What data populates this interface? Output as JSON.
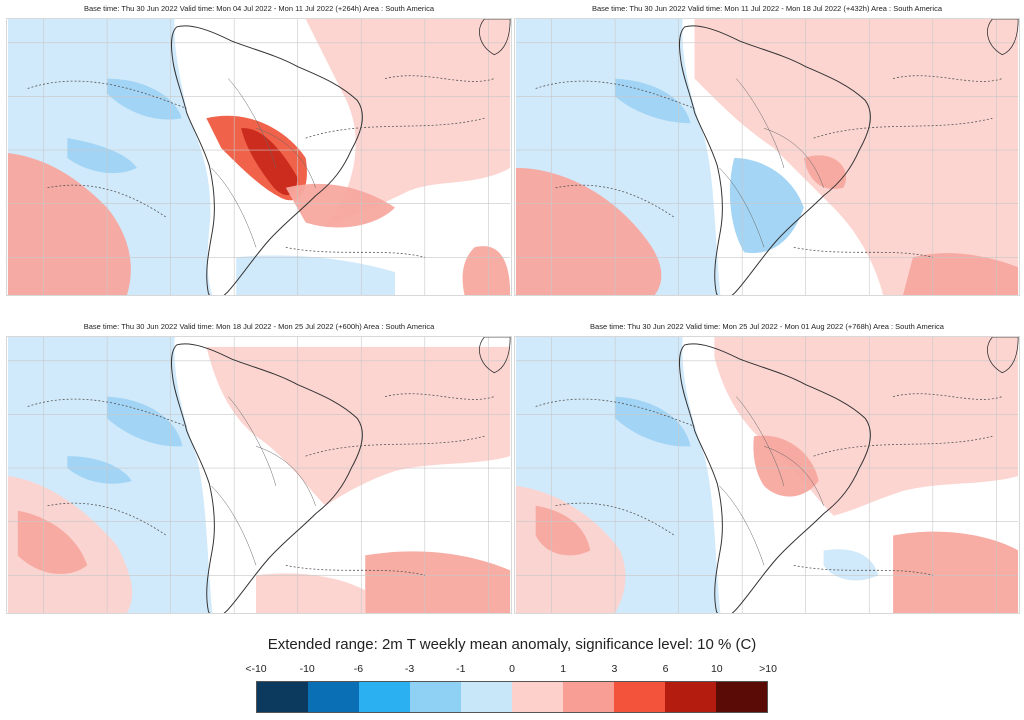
{
  "panels": [
    {
      "caption": "Base time: Thu 30 Jun 2022 Valid time: Mon 04 Jul 2022 - Mon 11 Jul 2022 (+264h) Area : South America"
    },
    {
      "caption": "Base time: Thu 30 Jun 2022 Valid time: Mon 11 Jul 2022 - Mon 18 Jul 2022 (+432h) Area : South America"
    },
    {
      "caption": "Base time: Thu 30 Jun 2022 Valid time: Mon 18 Jul 2022 - Mon 25 Jul 2022 (+600h) Area : South America"
    },
    {
      "caption": "Base time: Thu 30 Jun 2022 Valid time: Mon 25 Jul 2022 - Mon 01 Aug 2022 (+768h) Area : South America"
    }
  ],
  "title": "Extended range: 2m T weekly mean anomaly, significance level: 10 % (C)",
  "legend": {
    "labels": [
      "<-10",
      "-10",
      "-6",
      "-3",
      "-1",
      "0",
      "1",
      "3",
      "6",
      "10",
      ">10"
    ],
    "colors": [
      "#0b3a5e",
      "#0a6fb5",
      "#2bb0f2",
      "#8fd0f5",
      "#c8e8fa",
      "#fdd0cc",
      "#f99e94",
      "#f2533a",
      "#b51c10",
      "#5a0b06"
    ]
  }
}
